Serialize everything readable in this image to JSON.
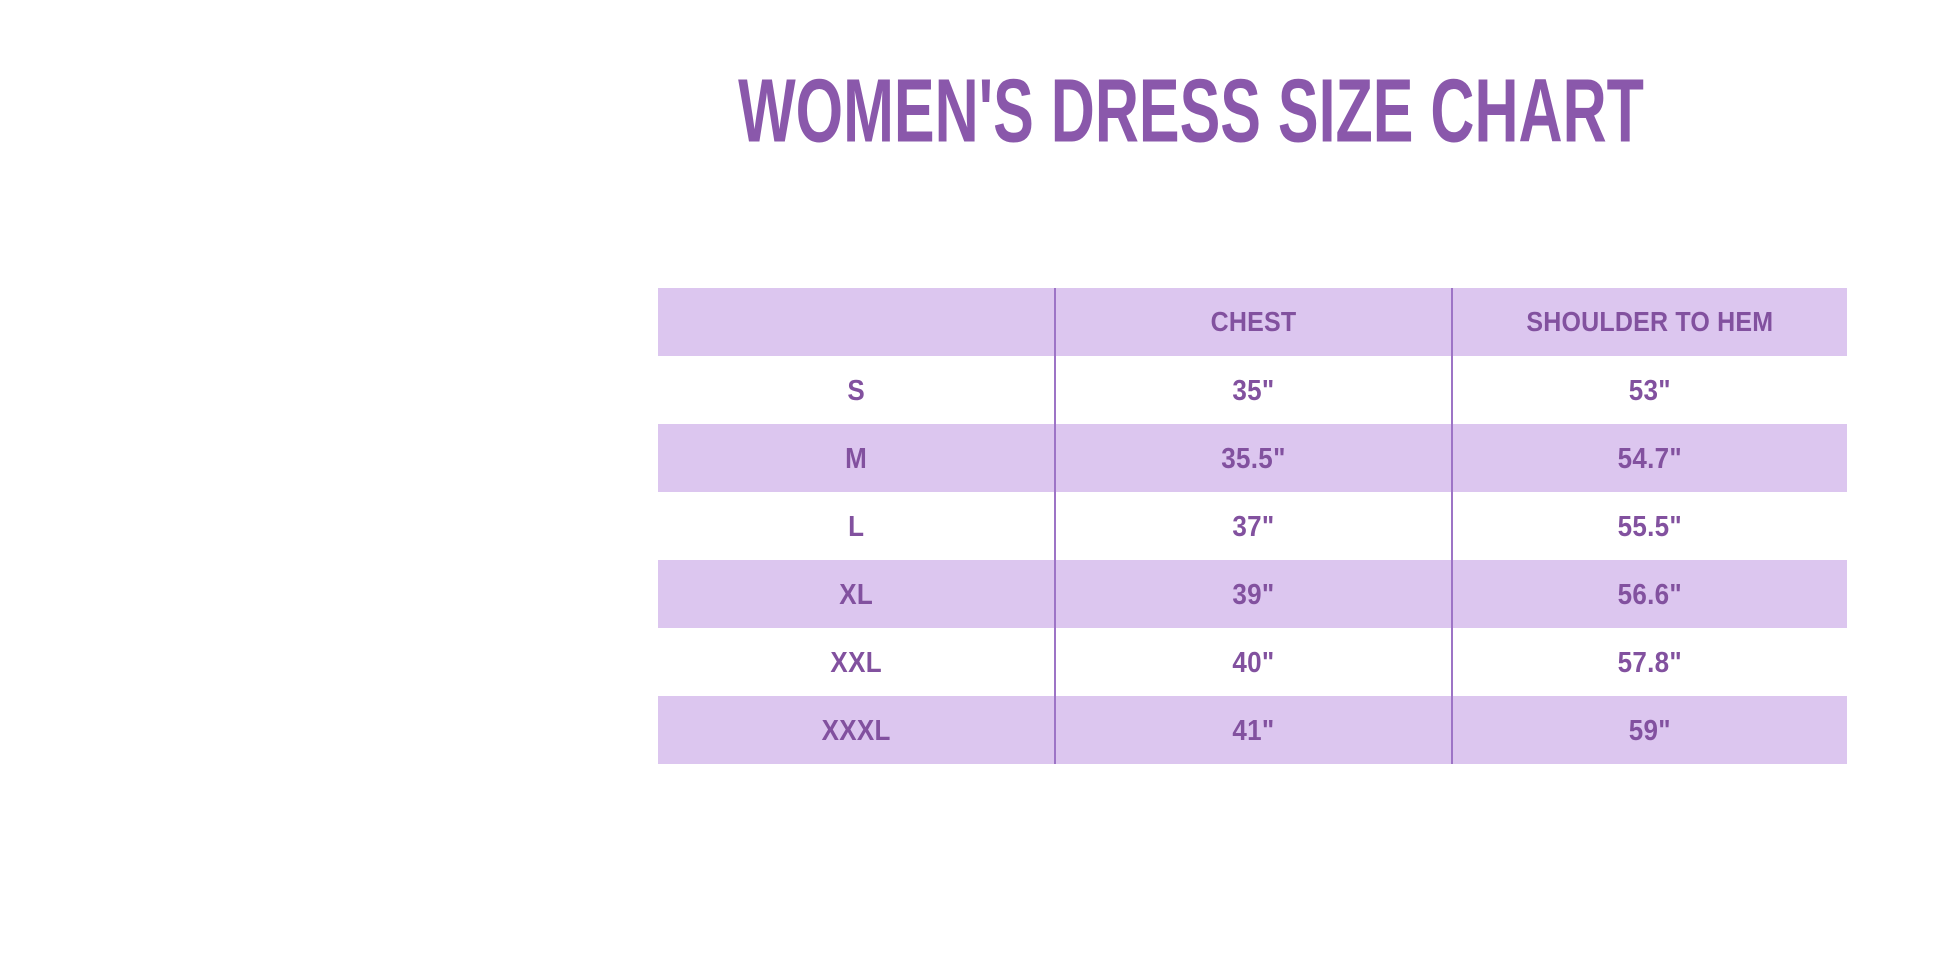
{
  "page": {
    "background": "#ffffff"
  },
  "colors": {
    "title_text": "#8a58ab",
    "cell_text": "#82519f",
    "stripe_band": "#dcc6ef",
    "column_separator": "#9d74c6"
  },
  "chart_data": {
    "type": "table",
    "title": "WOMEN'S DRESS SIZE CHART",
    "columns": [
      "",
      "CHEST",
      "SHOULDER TO HEM"
    ],
    "rows": [
      [
        "S",
        "35\"",
        "53\""
      ],
      [
        "M",
        "35.5\"",
        "54.7\""
      ],
      [
        "L",
        "37\"",
        "55.5\""
      ],
      [
        "XL",
        "39\"",
        "56.6\""
      ],
      [
        "XXL",
        "40\"",
        "57.8\""
      ],
      [
        "XXXL",
        "41\"",
        "59\""
      ]
    ],
    "row_striping": "header lavender, then alternating white / lavender",
    "legend_position": "none",
    "grid": "two vertical column separators only"
  }
}
